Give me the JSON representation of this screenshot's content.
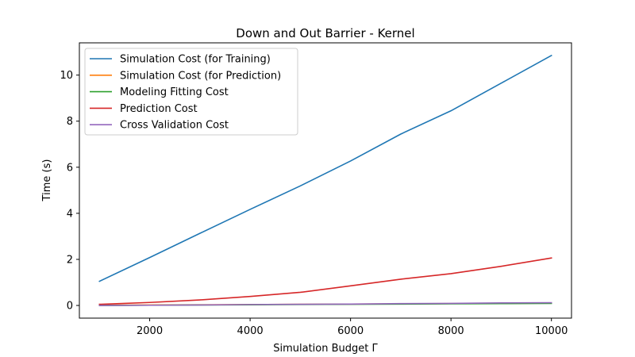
{
  "chart_data": {
    "type": "line",
    "title": "Down and Out Barrier - Kernel",
    "xlabel": "Simulation Budget Γ",
    "ylabel": "Time (s)",
    "xlim": [
      600,
      10400
    ],
    "ylim": [
      -0.55,
      11.4
    ],
    "xticks": [
      2000,
      4000,
      6000,
      8000,
      10000
    ],
    "yticks": [
      0,
      2,
      4,
      6,
      8,
      10
    ],
    "grid": false,
    "legend_position": "top-left",
    "x": [
      1000,
      2000,
      3000,
      4000,
      5000,
      6000,
      7000,
      8000,
      9000,
      10000
    ],
    "series": [
      {
        "name": "Simulation Cost (for Training)",
        "color": "#1f77b4",
        "values": [
          1.05,
          2.08,
          3.13,
          4.17,
          5.19,
          6.27,
          7.44,
          8.45,
          9.65,
          10.85
        ]
      },
      {
        "name": "Simulation Cost (for Prediction)",
        "color": "#ff7f0e",
        "values": [
          0.01,
          0.02,
          0.03,
          0.04,
          0.05,
          0.06,
          0.07,
          0.08,
          0.09,
          0.1
        ]
      },
      {
        "name": "Modeling Fitting Cost",
        "color": "#2ca02c",
        "values": [
          0.0,
          0.01,
          0.02,
          0.03,
          0.04,
          0.05,
          0.06,
          0.07,
          0.08,
          0.09
        ]
      },
      {
        "name": "Prediction Cost",
        "color": "#d62728",
        "values": [
          0.05,
          0.13,
          0.24,
          0.39,
          0.57,
          0.85,
          1.14,
          1.38,
          1.7,
          2.06
        ]
      },
      {
        "name": "Cross Validation Cost",
        "color": "#9467bd",
        "values": [
          0.0,
          0.01,
          0.02,
          0.04,
          0.05,
          0.06,
          0.08,
          0.09,
          0.11,
          0.12
        ]
      }
    ]
  }
}
